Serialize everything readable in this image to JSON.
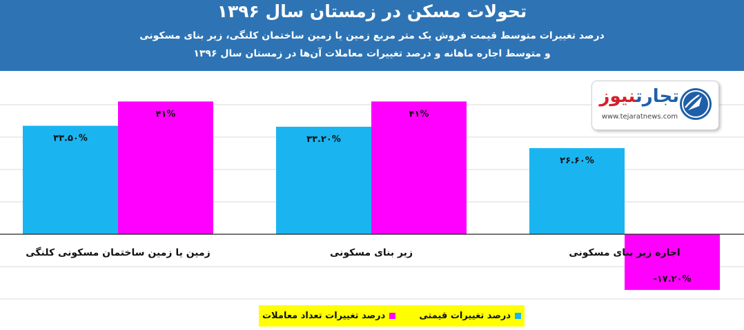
{
  "header": {
    "title": "تحولات مسکن در زمستان سال ۱۳۹۶",
    "subtitle_line1": "درصد تغییرات متوسط قیمت فروش یک متر مربع زمین یا زمین ساختمان کلنگی، زیر بنای مسکونی",
    "subtitle_line2": "و متوسط اجاره ماهانه و درصد تغییرات معاملات آن‌ها در زمستان سال ۱۳۹۶"
  },
  "logo": {
    "name_part1": "تجارت",
    "name_part2": "نیوز",
    "url": "www.tejaratnews.com",
    "brand_color": "#1f5fa8",
    "accent_color": "#d3202a"
  },
  "chart_data": {
    "type": "bar",
    "categories": [
      "زمین یا زمین ساختمان مسکونی کلنگی",
      "زیر بنای مسکونی",
      "اجاره زیر بنای مسکونی"
    ],
    "series": [
      {
        "name": "درصد تغییرات قیمتی",
        "color": "#1ab5f0",
        "values": [
          33.5,
          33.2,
          26.6
        ],
        "labels": [
          "۳۳.۵۰%",
          "۳۳.۲۰%",
          "۲۶.۶۰%"
        ]
      },
      {
        "name": "درصد تغییرات تعداد معاملات",
        "color": "#ff00ff",
        "values": [
          41,
          41,
          -17.2
        ],
        "labels": [
          "۴۱%",
          "۴۱%",
          "-۱۷.۲۰%"
        ]
      }
    ],
    "ylim": [
      -20,
      42
    ],
    "grid": true,
    "legend_position": "bottom"
  },
  "legend": {
    "items": [
      {
        "label": "درصد تغییرات قیمتی",
        "color": "#1ab5f0"
      },
      {
        "label": "درصد تغییرات تعداد معاملات",
        "color": "#ff00ff"
      }
    ]
  }
}
